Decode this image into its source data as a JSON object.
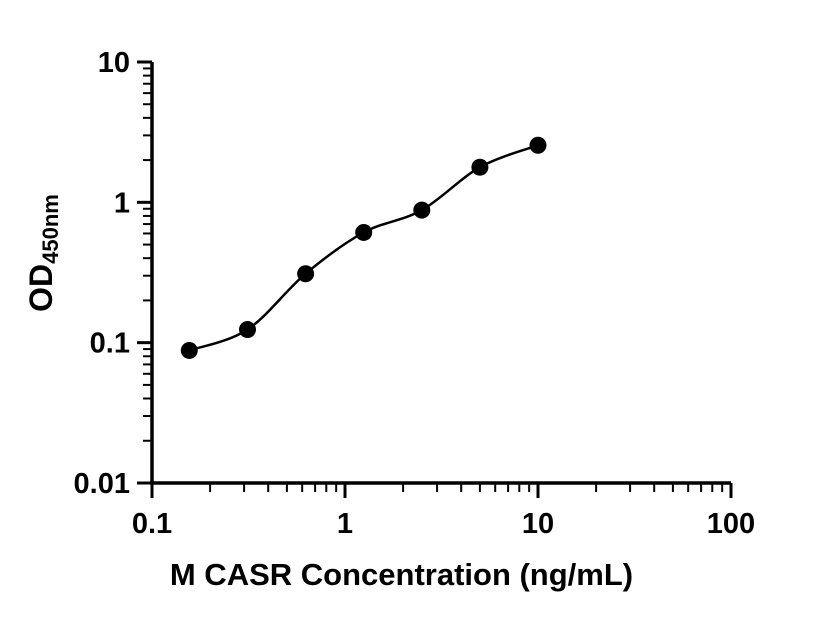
{
  "chart_data": {
    "type": "scatter",
    "title": "",
    "xlabel": "M CASR Concentration (ng/mL)",
    "ylabel": "OD",
    "ylabel_subscript": "450nm",
    "xscale": "log",
    "yscale": "log",
    "xlim": [
      0.1,
      100
    ],
    "ylim": [
      0.01,
      10
    ],
    "x": [
      0.156,
      0.3125,
      0.625,
      1.25,
      2.5,
      5,
      10
    ],
    "y": [
      0.088,
      0.124,
      0.31,
      0.61,
      0.88,
      1.78,
      2.55
    ],
    "x_tick_values": [
      0.1,
      1,
      10,
      100
    ],
    "x_tick_labels": [
      "0.1",
      "1",
      "10",
      "100"
    ],
    "y_tick_values": [
      0.01,
      0.1,
      1,
      10
    ],
    "y_tick_labels": [
      "0.01",
      "0.1",
      "1",
      "10"
    ],
    "grid": "off",
    "legend": "none",
    "curve": "smooth-fit-through-points",
    "colors": {
      "axis": "#000000",
      "line": "#000000",
      "marker": "#000000",
      "background": "#ffffff"
    }
  }
}
